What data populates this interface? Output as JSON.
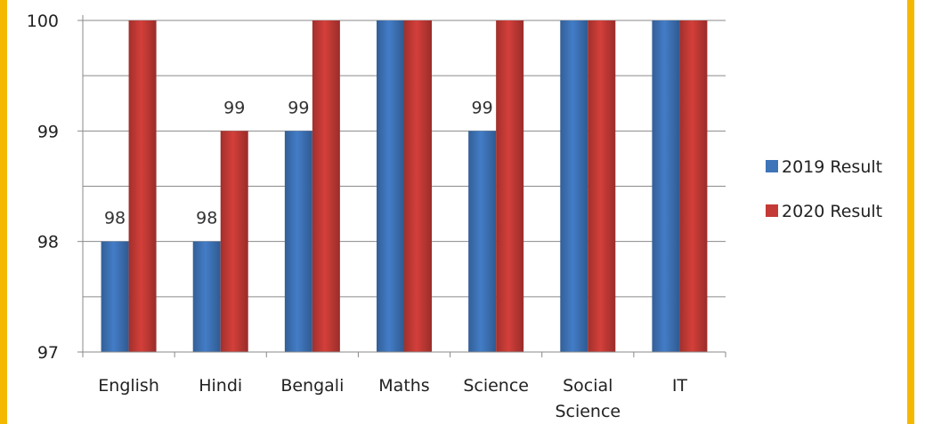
{
  "chart_data": {
    "type": "bar",
    "categories": [
      "English",
      "Hindi",
      "Bengali",
      "Maths",
      "Science",
      "Social Science",
      "IT"
    ],
    "category_lines": [
      [
        "English"
      ],
      [
        "Hindi"
      ],
      [
        "Bengali"
      ],
      [
        "Maths"
      ],
      [
        "Science"
      ],
      [
        "Social",
        "Science"
      ],
      [
        "IT"
      ]
    ],
    "series": [
      {
        "name": "2019 Result",
        "values": [
          98,
          98,
          99,
          100,
          99,
          100,
          100
        ],
        "color": "#3e74b8"
      },
      {
        "name": "2020 Result",
        "values": [
          100,
          99,
          100,
          100,
          100,
          100,
          100
        ],
        "color": "#c43a36"
      }
    ],
    "data_labels": [
      {
        "series": 0,
        "index": 0,
        "text": "98"
      },
      {
        "series": 0,
        "index": 1,
        "text": "98"
      },
      {
        "series": 1,
        "index": 1,
        "text": "99"
      },
      {
        "series": 0,
        "index": 2,
        "text": "99"
      },
      {
        "series": 0,
        "index": 4,
        "text": "99"
      }
    ],
    "ylim": [
      97,
      100
    ],
    "y_ticks": [
      {
        "value": 97,
        "label": "97"
      },
      {
        "value": 98,
        "label": "98"
      },
      {
        "value": 99,
        "label": "99"
      },
      {
        "value": 100,
        "label": "100"
      }
    ],
    "minor_step": 0.5,
    "grid": true,
    "legend_position": "right",
    "title": "",
    "xlabel": "",
    "ylabel": ""
  },
  "frame_color": "#f5b800"
}
